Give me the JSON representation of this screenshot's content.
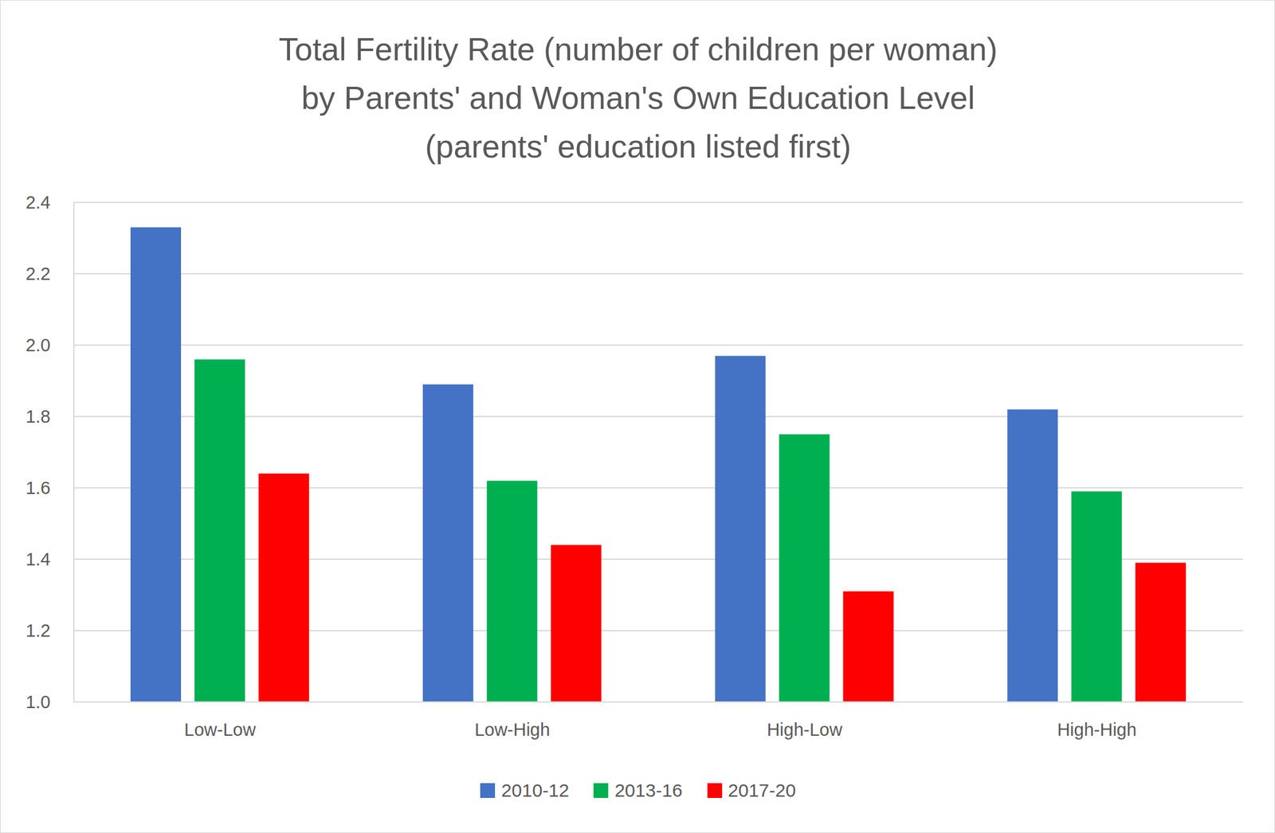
{
  "chart_data": {
    "type": "bar",
    "title": [
      "Total Fertility Rate (number of children per woman)",
      "by Parents' and Woman's Own Education Level",
      "(parents' education listed first)"
    ],
    "categories": [
      "Low-Low",
      "Low-High",
      "High-Low",
      "High-High"
    ],
    "series": [
      {
        "name": "2010-12",
        "color": "#4472c4",
        "values": [
          2.33,
          1.89,
          1.97,
          1.82
        ]
      },
      {
        "name": "2013-16",
        "color": "#00b050",
        "values": [
          1.96,
          1.62,
          1.75,
          1.59
        ]
      },
      {
        "name": "2017-20",
        "color": "#ff0000",
        "values": [
          1.64,
          1.44,
          1.31,
          1.39
        ]
      }
    ],
    "ylim": [
      1,
      2.4
    ],
    "yticks": [
      {
        "value": 1,
        "label": "1.0"
      },
      1.2,
      1.4,
      1.6,
      1.8,
      {
        "value": 2,
        "label": "2.0"
      },
      2.2,
      2.4
    ],
    "grid": true,
    "legend": "bottom"
  }
}
